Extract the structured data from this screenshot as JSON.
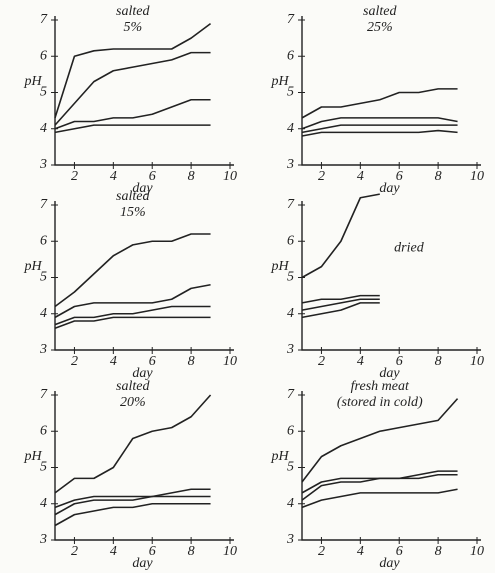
{
  "chart_data": [
    {
      "type": "line",
      "title": "salted",
      "subtitle": "5%",
      "y_label": "pH",
      "x_label": "day",
      "x": [
        1,
        2,
        3,
        4,
        5,
        6,
        7,
        8,
        9
      ],
      "xlim": [
        1,
        10
      ],
      "xticks": [
        2,
        4,
        6,
        8,
        10
      ],
      "ylim": [
        3,
        7
      ],
      "yticks": [
        3,
        4,
        5,
        6,
        7
      ],
      "series": [
        {
          "color": "#222",
          "values": [
            4.3,
            6.0,
            6.15,
            6.2,
            6.2,
            6.2,
            6.2,
            6.5,
            6.9
          ]
        },
        {
          "color": "#222",
          "values": [
            4.1,
            4.7,
            5.3,
            5.6,
            5.7,
            5.8,
            5.9,
            6.1,
            6.1
          ]
        },
        {
          "color": "#222",
          "values": [
            4.0,
            4.2,
            4.2,
            4.3,
            4.3,
            4.4,
            4.6,
            4.8,
            4.8
          ]
        },
        {
          "color": "#222",
          "values": [
            3.9,
            4.0,
            4.1,
            4.1,
            4.1,
            4.1,
            4.1,
            4.1,
            4.1
          ]
        }
      ]
    },
    {
      "type": "line",
      "title": "salted",
      "subtitle": "25%",
      "y_label": "pH",
      "x_label": "day",
      "x": [
        1,
        2,
        3,
        4,
        5,
        6,
        7,
        8,
        9
      ],
      "xlim": [
        1,
        10
      ],
      "xticks": [
        2,
        4,
        6,
        8,
        10
      ],
      "ylim": [
        3,
        7
      ],
      "yticks": [
        3,
        4,
        5,
        6,
        7
      ],
      "series": [
        {
          "color": "#222",
          "values": [
            4.3,
            4.6,
            4.6,
            4.7,
            4.8,
            5.0,
            5.0,
            5.1,
            5.1
          ]
        },
        {
          "color": "#222",
          "values": [
            4.0,
            4.2,
            4.3,
            4.3,
            4.3,
            4.3,
            4.3,
            4.3,
            4.2
          ]
        },
        {
          "color": "#222",
          "values": [
            3.9,
            4.0,
            4.1,
            4.1,
            4.1,
            4.1,
            4.1,
            4.1,
            4.1
          ]
        },
        {
          "color": "#222",
          "values": [
            3.8,
            3.9,
            3.9,
            3.9,
            3.9,
            3.9,
            3.9,
            3.95,
            3.9
          ]
        }
      ]
    },
    {
      "type": "line",
      "title": "salted",
      "subtitle": "15%",
      "y_label": "pH",
      "x_label": "day",
      "x": [
        1,
        2,
        3,
        4,
        5,
        6,
        7,
        8,
        9
      ],
      "xlim": [
        1,
        10
      ],
      "xticks": [
        2,
        4,
        6,
        8,
        10
      ],
      "ylim": [
        3,
        7
      ],
      "yticks": [
        3,
        4,
        5,
        6,
        7
      ],
      "series": [
        {
          "color": "#222",
          "values": [
            4.2,
            4.6,
            5.1,
            5.6,
            5.9,
            6.0,
            6.0,
            6.2,
            6.2
          ]
        },
        {
          "color": "#222",
          "values": [
            3.9,
            4.2,
            4.3,
            4.3,
            4.3,
            4.3,
            4.4,
            4.7,
            4.8
          ]
        },
        {
          "color": "#222",
          "values": [
            3.7,
            3.9,
            3.9,
            4.0,
            4.0,
            4.1,
            4.2,
            4.2,
            4.2
          ]
        },
        {
          "color": "#222",
          "values": [
            3.6,
            3.8,
            3.8,
            3.9,
            3.9,
            3.9,
            3.9,
            3.9,
            3.9
          ]
        }
      ]
    },
    {
      "type": "line",
      "title": "dried",
      "y_label": "pH",
      "x_label": "day",
      "x": [
        1,
        2,
        3,
        4,
        5
      ],
      "xlim": [
        1,
        10
      ],
      "xticks": [
        2,
        4,
        6,
        8,
        10
      ],
      "ylim": [
        3,
        7
      ],
      "yticks": [
        3,
        4,
        5,
        6,
        7
      ],
      "series": [
        {
          "color": "#222",
          "values": [
            5.0,
            5.3,
            6.0,
            7.2,
            7.3
          ]
        },
        {
          "color": "#222",
          "values": [
            4.3,
            4.4,
            4.4,
            4.5,
            4.5
          ]
        },
        {
          "color": "#222",
          "values": [
            4.1,
            4.2,
            4.3,
            4.4,
            4.4
          ]
        },
        {
          "color": "#222",
          "values": [
            3.9,
            4.0,
            4.1,
            4.3,
            4.3
          ]
        }
      ]
    },
    {
      "type": "line",
      "title": "salted",
      "subtitle": "20%",
      "y_label": "pH",
      "x_label": "day",
      "x": [
        1,
        2,
        3,
        4,
        5,
        6,
        7,
        8,
        9
      ],
      "xlim": [
        1,
        10
      ],
      "xticks": [
        2,
        4,
        6,
        8,
        10
      ],
      "ylim": [
        3,
        7
      ],
      "yticks": [
        3,
        4,
        5,
        6,
        7
      ],
      "series": [
        {
          "color": "#222",
          "values": [
            4.3,
            4.7,
            4.7,
            5.0,
            5.8,
            6.0,
            6.1,
            6.4,
            7.0
          ]
        },
        {
          "color": "#222",
          "values": [
            3.9,
            4.1,
            4.2,
            4.2,
            4.2,
            4.2,
            4.3,
            4.4,
            4.4
          ]
        },
        {
          "color": "#222",
          "values": [
            3.7,
            4.0,
            4.1,
            4.1,
            4.1,
            4.2,
            4.2,
            4.2,
            4.2
          ]
        },
        {
          "color": "#222",
          "values": [
            3.4,
            3.7,
            3.8,
            3.9,
            3.9,
            4.0,
            4.0,
            4.0,
            4.0
          ]
        }
      ]
    },
    {
      "type": "line",
      "title": "fresh meat",
      "subtitle": "(stored in cold)",
      "y_label": "pH",
      "x_label": "day",
      "x": [
        1,
        2,
        3,
        4,
        5,
        6,
        7,
        8,
        9
      ],
      "xlim": [
        1,
        10
      ],
      "xticks": [
        2,
        4,
        6,
        8,
        10
      ],
      "ylim": [
        3,
        7
      ],
      "yticks": [
        3,
        4,
        5,
        6,
        7
      ],
      "series": [
        {
          "color": "#222",
          "values": [
            4.6,
            5.3,
            5.6,
            5.8,
            6.0,
            6.1,
            6.2,
            6.3,
            6.9
          ]
        },
        {
          "color": "#222",
          "values": [
            4.3,
            4.6,
            4.7,
            4.7,
            4.7,
            4.7,
            4.8,
            4.9,
            4.9
          ]
        },
        {
          "color": "#222",
          "values": [
            4.1,
            4.5,
            4.6,
            4.6,
            4.7,
            4.7,
            4.7,
            4.8,
            4.8
          ]
        },
        {
          "color": "#222",
          "values": [
            3.9,
            4.1,
            4.2,
            4.3,
            4.3,
            4.3,
            4.3,
            4.3,
            4.4
          ]
        }
      ]
    }
  ]
}
